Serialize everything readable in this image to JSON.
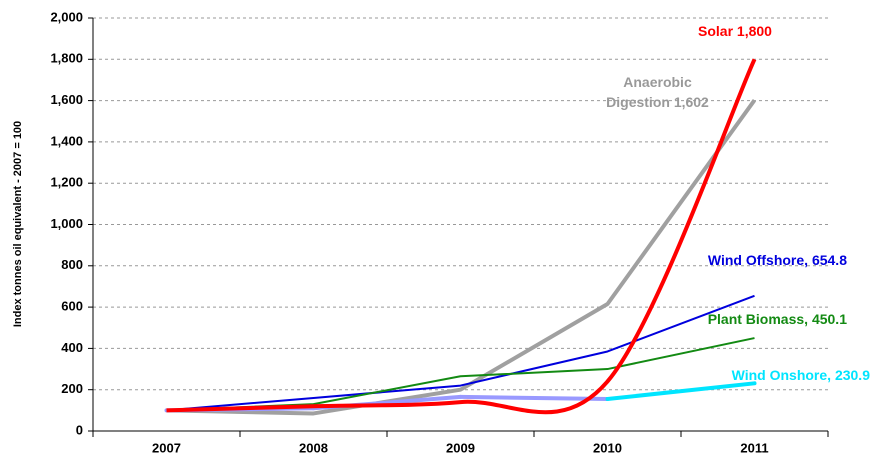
{
  "chart_data": {
    "type": "line",
    "y_label": "Index tonnes oil equivalent - 2007 = 100",
    "categories": [
      "2007",
      "2008",
      "2009",
      "2010",
      "2011"
    ],
    "ylim": [
      0,
      2000
    ],
    "yticks": [
      0,
      200,
      400,
      600,
      800,
      {
        "value": 1000,
        "label": "1,000"
      },
      {
        "value": 1200,
        "label": "1,200"
      },
      {
        "value": 1400,
        "label": "1,400"
      },
      {
        "value": 1600,
        "label": "1,600"
      },
      {
        "value": 1800,
        "label": "1,800"
      },
      {
        "value": 2000,
        "label": "2,000"
      }
    ],
    "grid": true,
    "series": [
      {
        "name": "Anaerobic Digestion",
        "color": "#a0a0a0",
        "values": [
          100,
          85,
          200,
          615,
          1602
        ],
        "end_label": "1,602",
        "width": 4
      },
      {
        "name": "Wind Offshore,",
        "color": "#0000dd",
        "values": [
          100,
          160,
          220,
          385,
          654.8
        ],
        "end_label": "654.8",
        "width": 2
      },
      {
        "name": "Plant Biomass,",
        "color": "#138a13",
        "values": [
          100,
          130,
          265,
          300,
          450.1
        ],
        "end_label": "450.1",
        "width": 2
      },
      {
        "name": "Wind Onshore,",
        "color": "#00e5ff",
        "segment_colors": [
          "#9999ff",
          "#9999ff",
          "#9999ff",
          "#00e5ff"
        ],
        "values": [
          100,
          110,
          165,
          155,
          230.9
        ],
        "end_label": "230.9",
        "width": 4
      },
      {
        "name": "Solar",
        "color": "#ff0000",
        "values": [
          100,
          120,
          140,
          240,
          1800
        ],
        "end_label": "1,800",
        "width": 4,
        "smooth": true
      }
    ]
  }
}
